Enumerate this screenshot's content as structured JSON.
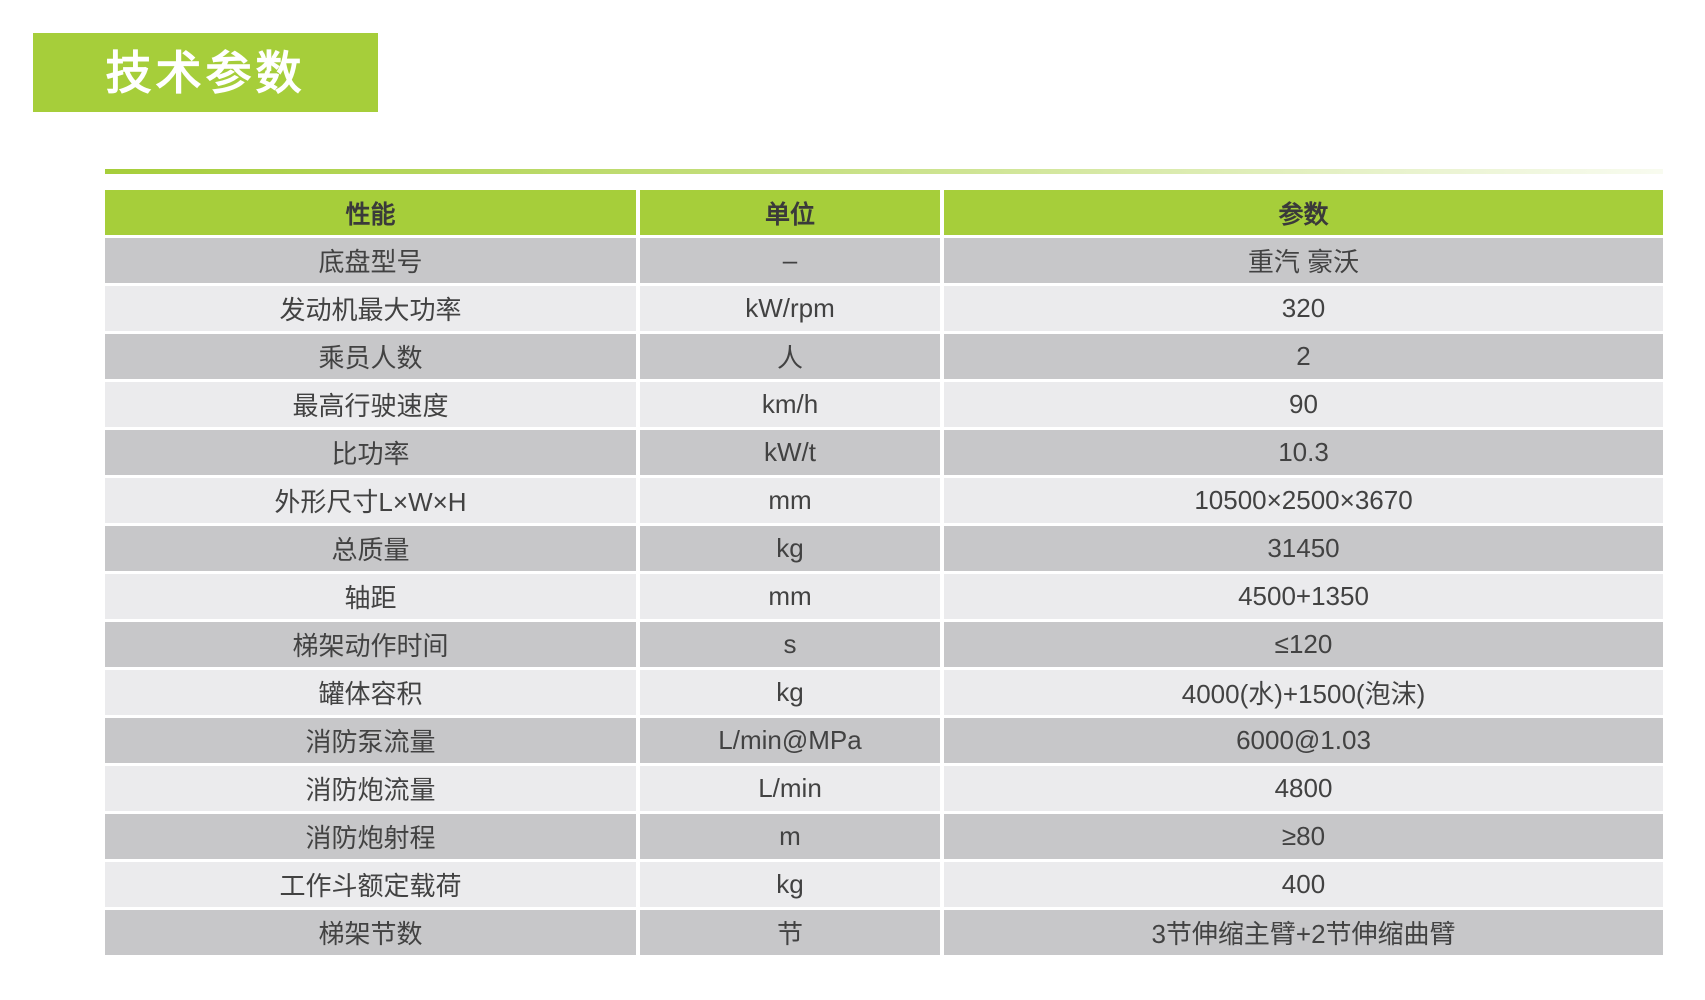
{
  "page": {
    "title": "技术参数"
  },
  "colors": {
    "accent_green": "#a6ce3a",
    "row_light": "#ebebed",
    "row_dark": "#c7c7c9",
    "title_text": "#ffffff",
    "body_text": "#424242"
  },
  "table": {
    "headers": {
      "performance": "性能",
      "unit": "单位",
      "parameter": "参数"
    },
    "rows": [
      {
        "name": "底盘型号",
        "unit": "–",
        "value": "重汽 豪沃"
      },
      {
        "name": "发动机最大功率",
        "unit": "kW/rpm",
        "value": "320"
      },
      {
        "name": "乘员人数",
        "unit": "人",
        "value": "2"
      },
      {
        "name": "最高行驶速度",
        "unit": "km/h",
        "value": "90"
      },
      {
        "name": "比功率",
        "unit": "kW/t",
        "value": "10.3"
      },
      {
        "name": "外形尺寸L×W×H",
        "unit": "mm",
        "value": "10500×2500×3670"
      },
      {
        "name": "总质量",
        "unit": "kg",
        "value": "31450"
      },
      {
        "name": "轴距",
        "unit": "mm",
        "value": "4500+1350"
      },
      {
        "name": "梯架动作时间",
        "unit": "s",
        "value": "≤120"
      },
      {
        "name": "罐体容积",
        "unit": "kg",
        "value": "4000(水)+1500(泡沫)"
      },
      {
        "name": "消防泵流量",
        "unit": "L/min@MPa",
        "value": "6000@1.03"
      },
      {
        "name": "消防炮流量",
        "unit": "L/min",
        "value": "4800"
      },
      {
        "name": "消防炮射程",
        "unit": "m",
        "value": "≥80"
      },
      {
        "name": "工作斗额定载荷",
        "unit": "kg",
        "value": "400"
      },
      {
        "name": "梯架节数",
        "unit": "节",
        "value": "3节伸缩主臂+2节伸缩曲臂"
      }
    ]
  }
}
